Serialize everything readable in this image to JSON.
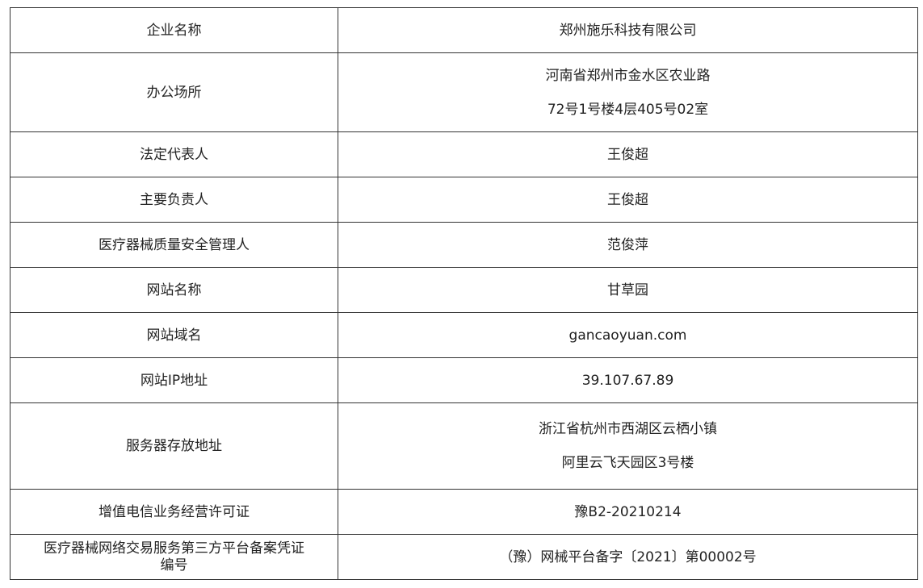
{
  "rows": [
    {
      "label": "企业名称",
      "value": [
        "郑州施乐科技有限公司"
      ]
    },
    {
      "label": "办公场所",
      "value": [
        "河南省郑州市金水区农业路",
        "72号1号楼4层405号02室"
      ]
    },
    {
      "label": "法定代表人",
      "value": [
        "王俊超"
      ]
    },
    {
      "label": "主要负责人",
      "value": [
        "王俊超"
      ]
    },
    {
      "label": "医疗器械质量安全管理人",
      "value": [
        "范俊萍"
      ]
    },
    {
      "label": "网站名称",
      "value": [
        "甘草园"
      ]
    },
    {
      "label": "网站域名",
      "value": [
        "gancaoyuan.com"
      ]
    },
    {
      "label": "网站IP地址",
      "value": [
        "39.107.67.89"
      ]
    },
    {
      "label": "服务器存放地址",
      "value": [
        "浙江省杭州市西湖区云栖小镇",
        "阿里云飞天园区3号楼"
      ]
    },
    {
      "label": "增值电信业务经营许可证",
      "value": [
        "豫B2-20210214"
      ]
    },
    {
      "label": [
        "医疗器械网络交易服务第三方平台备案凭证",
        "编号"
      ],
      "value": [
        "（豫）网械平台备字〔2021〕第00002号"
      ]
    }
  ]
}
